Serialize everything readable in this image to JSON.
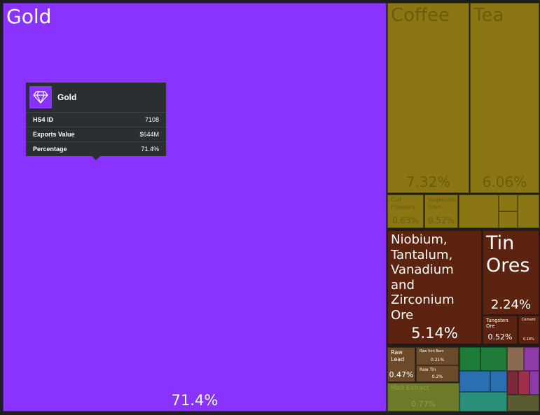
{
  "chart_data": {
    "type": "treemap",
    "categories": [
      "Gold",
      "Coffee",
      "Tea",
      "Cut Flowers",
      "Vegetable Saps",
      "Niobium, Tantalum, Vanadium and Zirconium Ore",
      "Tin Ores",
      "Tungsten Ore",
      "Cement",
      "Raw Lead",
      "Raw Iron Bars",
      "Raw Tin",
      "Malt Extract"
    ],
    "values": [
      71.4,
      7.32,
      6.06,
      0.63,
      0.52,
      5.14,
      2.24,
      0.52,
      0.16,
      0.47,
      0.21,
      0.2,
      0.77
    ],
    "value_labels": [
      "71.4%",
      "7.32%",
      "6.06%",
      "0.63%",
      "0.52%",
      "5.14%",
      "2.24%",
      "0.52%",
      "0.16%",
      "0.47%",
      "0.21%",
      "0.2%",
      "0.77%"
    ],
    "colors": [
      "#8a33ff",
      "#8a7612",
      "#8a7612",
      "#8a7612",
      "#8a7612",
      "#5c2410",
      "#5c2410",
      "#5c2410",
      "#5c2410",
      "#6b4b2a",
      "#6b4b2a",
      "#6b4b2a",
      "#6d7a2a"
    ]
  },
  "tooltip": {
    "rows": [
      {
        "label": "HS4 ID",
        "value": "7108"
      },
      {
        "label": "Exports Value",
        "value": "$644M"
      }
    ]
  },
  "tooltip_percentage_label": "Percentage"
}
